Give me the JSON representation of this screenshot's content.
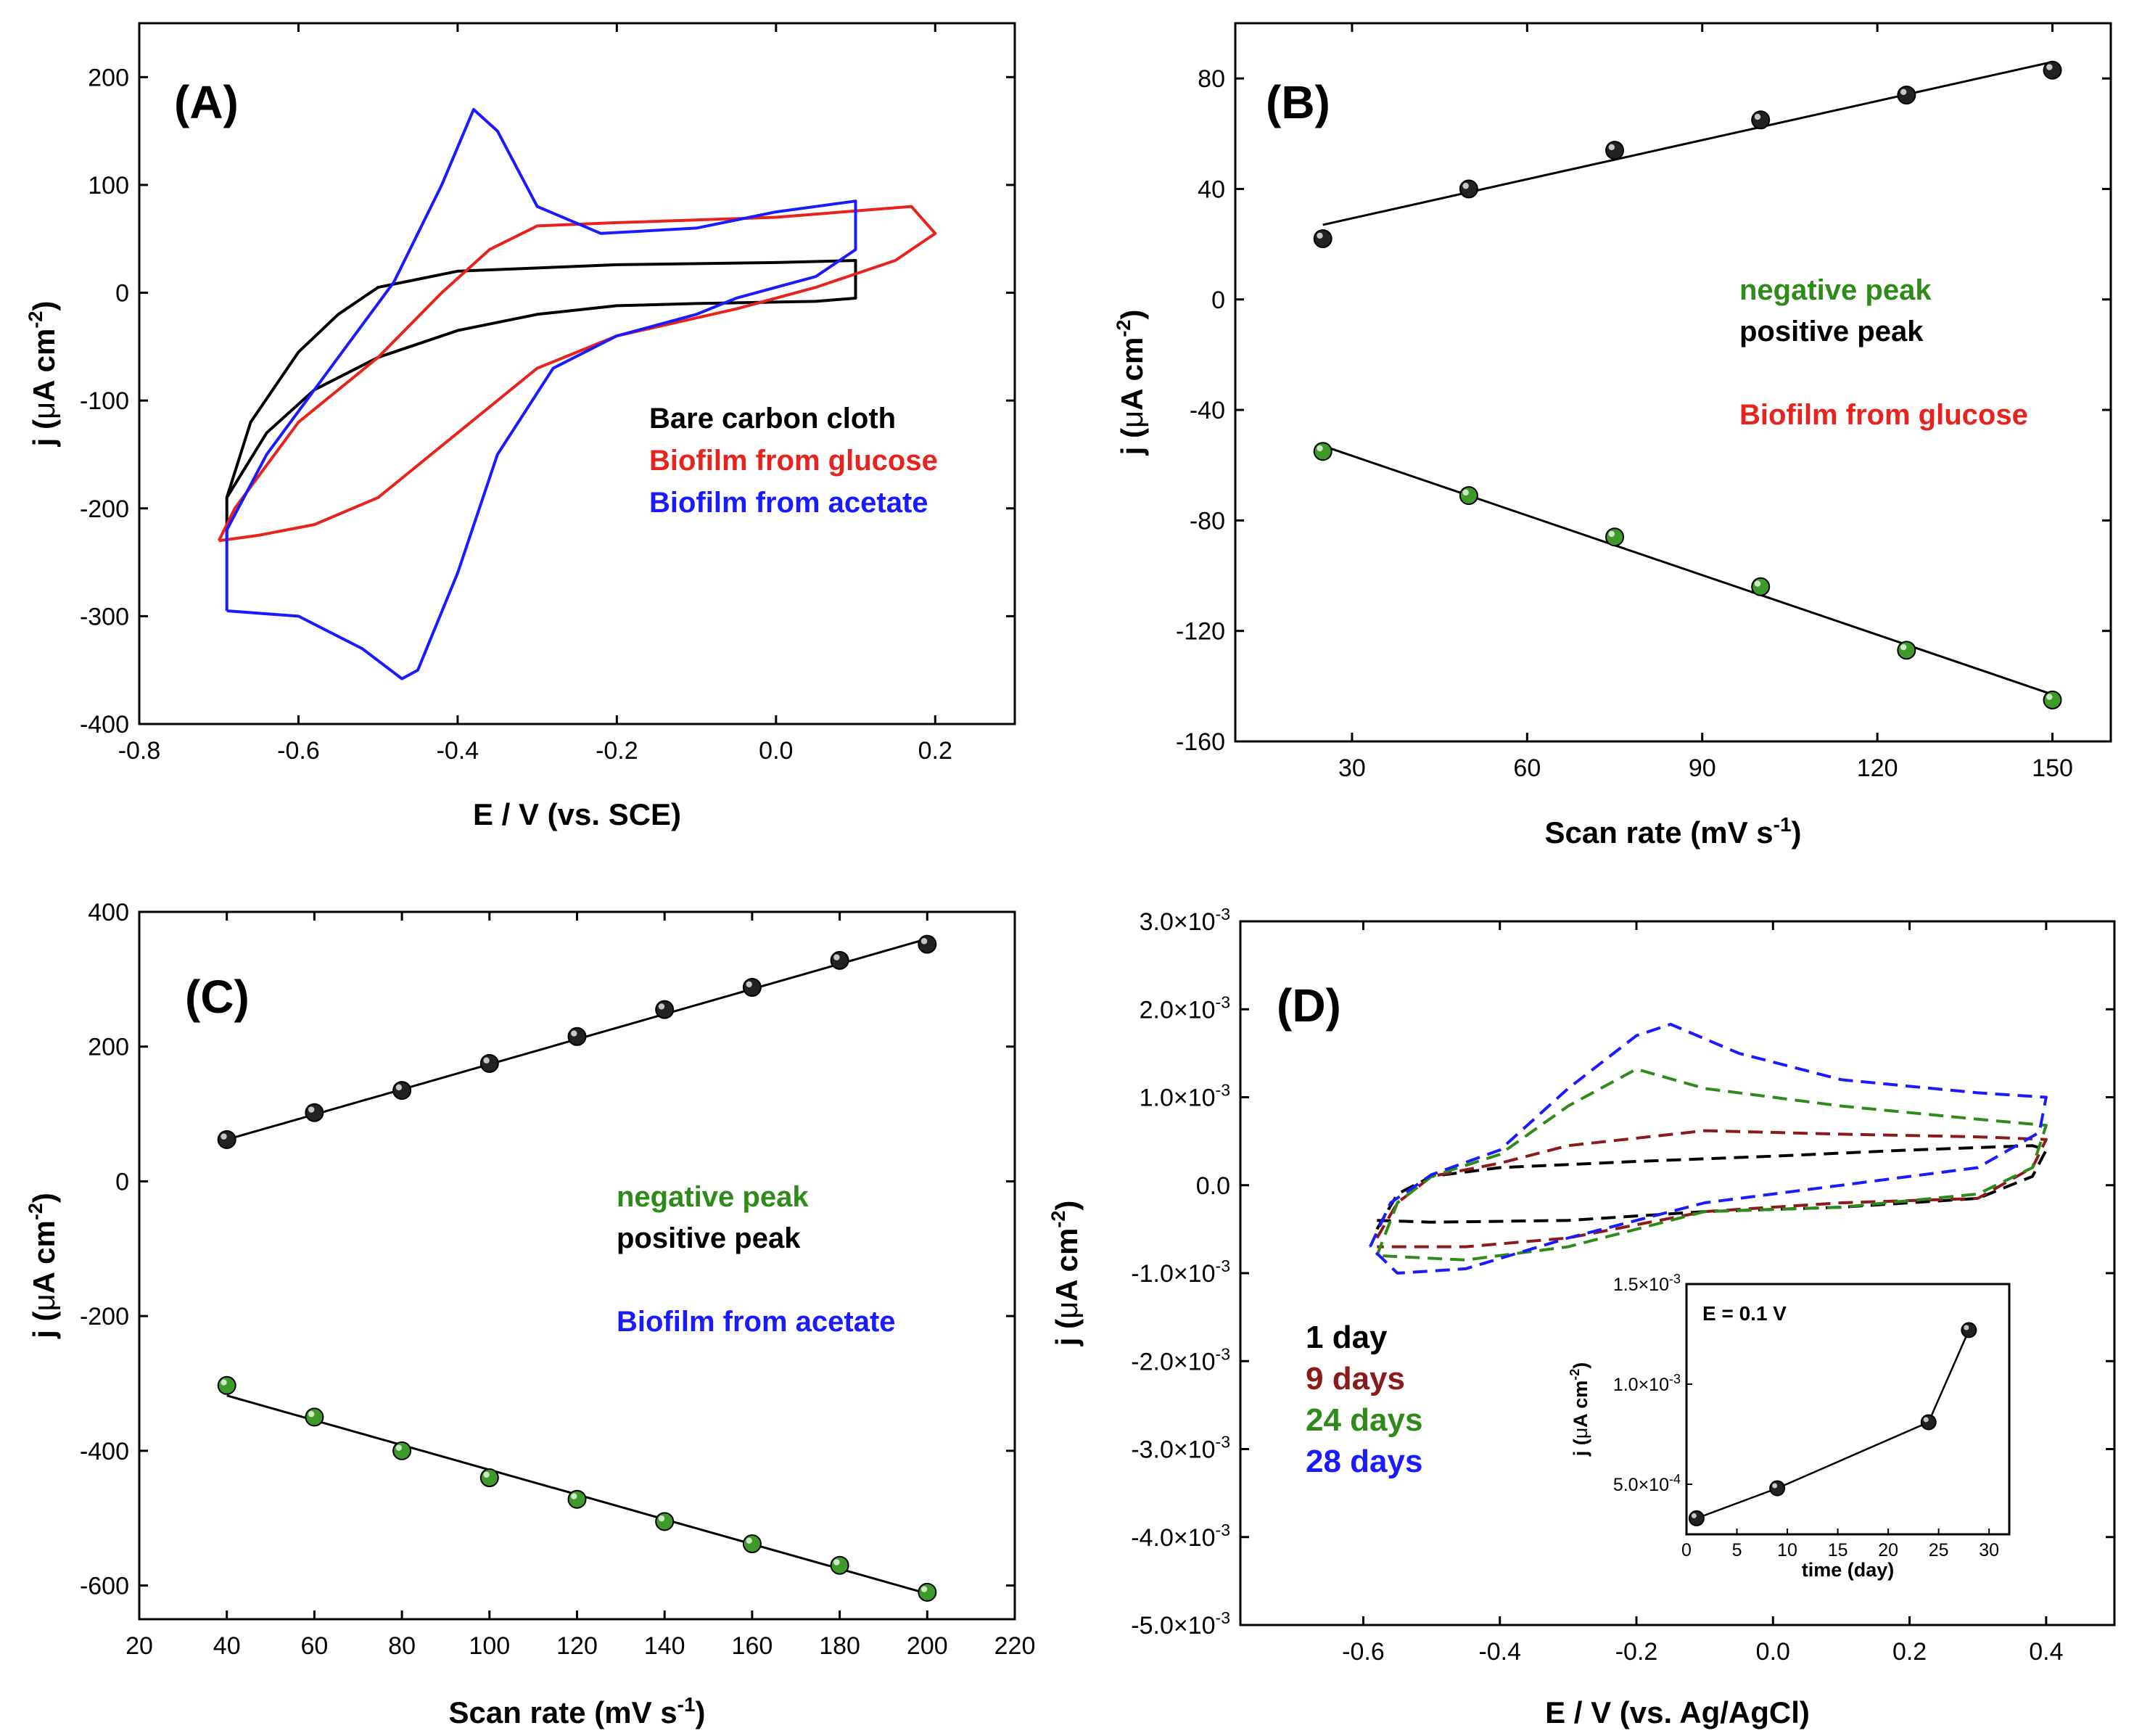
{
  "colors": {
    "black": "#000000",
    "red": "#e8221c",
    "blue": "#1a1aff",
    "green": "#2e8b1a",
    "darkred": "#8b1a1a",
    "dgreen": "#2e8b1a",
    "dblue": "#1a1aff"
  },
  "chart_data": [
    {
      "id": "A",
      "type": "line",
      "panel_label": "(A)",
      "xlabel": "E / V (vs. SCE)",
      "ylabel_main": "j (",
      "ylabel_mu": "μ",
      "ylabel_unit": "A cm",
      "ylabel_sup": "-2",
      "ylabel_close": ")",
      "xlim": [
        -0.8,
        0.3
      ],
      "ylim": [
        -400,
        250
      ],
      "xticks": [
        -0.8,
        -0.6,
        -0.4,
        -0.2,
        0.0,
        0.2
      ],
      "xtick_labels": [
        "-0.8",
        "-0.6",
        "-0.4",
        "-0.2",
        "0.0",
        "0.2"
      ],
      "yticks": [
        -400,
        -300,
        -200,
        -100,
        0,
        100,
        200
      ],
      "ytick_labels": [
        "-400",
        "-300",
        "-200",
        "-100",
        "0",
        "100",
        "200"
      ],
      "legend": [
        "Bare carbon cloth",
        "Biofilm from glucose",
        "Biofilm from acetate"
      ],
      "series": [
        {
          "name": "Bare carbon cloth",
          "color": "black",
          "style": "solid",
          "points": [
            [
              -0.69,
              -230
            ],
            [
              -0.69,
              -190
            ],
            [
              -0.66,
              -120
            ],
            [
              -0.6,
              -55
            ],
            [
              -0.55,
              -20
            ],
            [
              -0.5,
              5
            ],
            [
              -0.4,
              20
            ],
            [
              -0.2,
              26
            ],
            [
              0.0,
              28
            ],
            [
              0.1,
              30
            ],
            [
              0.1,
              -5
            ],
            [
              0.05,
              -8
            ],
            [
              -0.1,
              -10
            ],
            [
              -0.2,
              -12
            ],
            [
              -0.3,
              -20
            ],
            [
              -0.4,
              -35
            ],
            [
              -0.5,
              -60
            ],
            [
              -0.58,
              -90
            ],
            [
              -0.64,
              -130
            ],
            [
              -0.69,
              -190
            ],
            [
              -0.69,
              -230
            ]
          ]
        },
        {
          "name": "Biofilm from glucose",
          "color": "red",
          "style": "solid",
          "points": [
            [
              -0.7,
              -230
            ],
            [
              -0.68,
              -200
            ],
            [
              -0.6,
              -120
            ],
            [
              -0.5,
              -60
            ],
            [
              -0.42,
              0
            ],
            [
              -0.36,
              40
            ],
            [
              -0.3,
              62
            ],
            [
              -0.2,
              65
            ],
            [
              0.0,
              70
            ],
            [
              0.17,
              80
            ],
            [
              0.2,
              55
            ],
            [
              0.15,
              30
            ],
            [
              0.05,
              5
            ],
            [
              -0.05,
              -15
            ],
            [
              -0.2,
              -40
            ],
            [
              -0.3,
              -70
            ],
            [
              -0.4,
              -130
            ],
            [
              -0.5,
              -190
            ],
            [
              -0.58,
              -215
            ],
            [
              -0.65,
              -225
            ],
            [
              -0.7,
              -230
            ]
          ]
        },
        {
          "name": "Biofilm from acetate",
          "color": "blue",
          "style": "solid",
          "points": [
            [
              -0.69,
              -295
            ],
            [
              -0.69,
              -220
            ],
            [
              -0.64,
              -150
            ],
            [
              -0.56,
              -70
            ],
            [
              -0.48,
              10
            ],
            [
              -0.42,
              100
            ],
            [
              -0.38,
              170
            ],
            [
              -0.35,
              150
            ],
            [
              -0.3,
              80
            ],
            [
              -0.22,
              55
            ],
            [
              -0.1,
              60
            ],
            [
              0.0,
              75
            ],
            [
              0.1,
              85
            ],
            [
              0.1,
              40
            ],
            [
              0.05,
              15
            ],
            [
              0.0,
              5
            ],
            [
              -0.05,
              -5
            ],
            [
              -0.1,
              -20
            ],
            [
              -0.2,
              -40
            ],
            [
              -0.28,
              -70
            ],
            [
              -0.35,
              -150
            ],
            [
              -0.4,
              -260
            ],
            [
              -0.45,
              -350
            ],
            [
              -0.47,
              -358
            ],
            [
              -0.52,
              -330
            ],
            [
              -0.6,
              -300
            ],
            [
              -0.69,
              -295
            ]
          ]
        }
      ]
    },
    {
      "id": "B",
      "type": "scatter",
      "panel_label": "(B)",
      "xlabel": "Scan rate (mV s",
      "xlabel_sup": "-1",
      "xlabel_close": ")",
      "ylabel_main": "j (",
      "ylabel_mu": "μ",
      "ylabel_unit": "A cm",
      "ylabel_sup": "-2",
      "ylabel_close": ")",
      "xlim": [
        10,
        160
      ],
      "ylim": [
        -160,
        100
      ],
      "xticks": [
        30,
        60,
        90,
        120,
        150
      ],
      "xtick_labels": [
        "30",
        "60",
        "90",
        "120",
        "150"
      ],
      "yticks": [
        -160,
        -120,
        -80,
        -40,
        0,
        40,
        80
      ],
      "ytick_labels": [
        "-160",
        "-120",
        "-80",
        "-40",
        "0",
        "40",
        "80"
      ],
      "legend": [
        "negative peak",
        "positive peak",
        "Biofilm from glucose"
      ],
      "series": [
        {
          "name": "positive peak",
          "color": "black",
          "x": [
            25,
            50,
            75,
            100,
            125,
            150
          ],
          "y": [
            22,
            40,
            54,
            65,
            74,
            83
          ],
          "fit": [
            [
              25,
              27
            ],
            [
              150,
              86
            ]
          ]
        },
        {
          "name": "negative peak",
          "color": "green",
          "x": [
            25,
            50,
            75,
            100,
            125,
            150
          ],
          "y": [
            -55,
            -71,
            -86,
            -104,
            -127,
            -145
          ],
          "fit": [
            [
              25,
              -53
            ],
            [
              150,
              -143
            ]
          ]
        }
      ]
    },
    {
      "id": "C",
      "type": "scatter",
      "panel_label": "(C)",
      "xlabel": "Scan rate (mV s",
      "xlabel_sup": "-1",
      "xlabel_close": ")",
      "ylabel_main": "j (",
      "ylabel_mu": "μ",
      "ylabel_unit": "A cm",
      "ylabel_sup": "-2",
      "ylabel_close": ")",
      "xlim": [
        20,
        220
      ],
      "ylim": [
        -650,
        400
      ],
      "xticks": [
        20,
        40,
        60,
        80,
        100,
        120,
        140,
        160,
        180,
        200,
        220
      ],
      "xtick_labels": [
        "20",
        "40",
        "60",
        "80",
        "100",
        "120",
        "140",
        "160",
        "180",
        "200",
        "220"
      ],
      "yticks": [
        -600,
        -400,
        -200,
        0,
        200,
        400
      ],
      "ytick_labels": [
        "-600",
        "-400",
        "-200",
        "0",
        "200",
        "400"
      ],
      "legend": [
        "negative peak",
        "positive peak",
        "Biofilm from acetate"
      ],
      "series": [
        {
          "name": "positive peak",
          "color": "black",
          "x": [
            40,
            60,
            80,
            100,
            120,
            140,
            160,
            180,
            200
          ],
          "y": [
            62,
            102,
            135,
            175,
            215,
            255,
            288,
            328,
            352
          ],
          "fit": [
            [
              40,
              62
            ],
            [
              200,
              360
            ]
          ]
        },
        {
          "name": "negative peak",
          "color": "green",
          "x": [
            40,
            60,
            80,
            100,
            120,
            140,
            160,
            180,
            200
          ],
          "y": [
            -303,
            -350,
            -400,
            -440,
            -472,
            -505,
            -538,
            -570,
            -610
          ],
          "fit": [
            [
              40,
              -318
            ],
            [
              200,
              -612
            ]
          ]
        }
      ]
    },
    {
      "id": "D",
      "type": "line",
      "panel_label": "(D)",
      "xlabel": "E / V (vs. Ag/AgCl)",
      "ylabel_main": "j (",
      "ylabel_mu": "μ",
      "ylabel_unit": "A cm",
      "ylabel_sup": "-2",
      "ylabel_close": ")",
      "xlim": [
        -0.78,
        0.5
      ],
      "ylim": [
        -0.005,
        0.003
      ],
      "xticks": [
        -0.6,
        -0.4,
        -0.2,
        0.0,
        0.2,
        0.4
      ],
      "xtick_labels": [
        "-0.6",
        "-0.4",
        "-0.2",
        "0.0",
        "0.2",
        "0.4"
      ],
      "yticks": [
        -0.005,
        -0.004,
        -0.003,
        -0.002,
        -0.001,
        0.0,
        0.001,
        0.002,
        0.003
      ],
      "ytick_mant": [
        "-5.0×10",
        "-4.0×10",
        "-3.0×10",
        "-2.0×10",
        "-1.0×10",
        "0.0",
        "1.0×10",
        "2.0×10",
        "3.0×10"
      ],
      "ytick_exp": [
        "-3",
        "-3",
        "-3",
        "-3",
        "-3",
        "",
        "-3",
        "-3",
        "-3"
      ],
      "legend": [
        "1 day",
        "9 days",
        "24 days",
        "28 days"
      ],
      "series": [
        {
          "name": "1 day",
          "color": "black",
          "style": "dashed",
          "points": [
            [
              -0.58,
              -0.0005
            ],
            [
              -0.55,
              -0.0001
            ],
            [
              -0.5,
              0.0001
            ],
            [
              -0.4,
              0.0002
            ],
            [
              -0.2,
              0.00027
            ],
            [
              0.0,
              0.00033
            ],
            [
              0.2,
              0.0004
            ],
            [
              0.38,
              0.00045
            ],
            [
              0.4,
              0.0004
            ],
            [
              0.38,
              0.0001
            ],
            [
              0.3,
              -0.00015
            ],
            [
              0.1,
              -0.00025
            ],
            [
              -0.1,
              -0.0003
            ],
            [
              -0.3,
              -0.0004
            ],
            [
              -0.5,
              -0.00042
            ],
            [
              -0.58,
              -0.0004
            ]
          ]
        },
        {
          "name": "9 days",
          "color": "darkred",
          "style": "dashed",
          "points": [
            [
              -0.58,
              -0.0006
            ],
            [
              -0.55,
              -0.0002
            ],
            [
              -0.5,
              0.0001
            ],
            [
              -0.4,
              0.00025
            ],
            [
              -0.3,
              0.00045
            ],
            [
              -0.1,
              0.00062
            ],
            [
              0.1,
              0.00058
            ],
            [
              0.3,
              0.00055
            ],
            [
              0.4,
              0.00052
            ],
            [
              0.38,
              0.0002
            ],
            [
              0.3,
              -0.00015
            ],
            [
              0.1,
              -0.0002
            ],
            [
              -0.1,
              -0.0003
            ],
            [
              -0.3,
              -0.0006
            ],
            [
              -0.45,
              -0.0007
            ],
            [
              -0.58,
              -0.0007
            ]
          ]
        },
        {
          "name": "24 days",
          "color": "dgreen",
          "style": "dashed",
          "points": [
            [
              -0.58,
              -0.0008
            ],
            [
              -0.55,
              -0.0002
            ],
            [
              -0.5,
              0.0001
            ],
            [
              -0.4,
              0.00035
            ],
            [
              -0.3,
              0.0009
            ],
            [
              -0.2,
              0.00132
            ],
            [
              -0.1,
              0.0011
            ],
            [
              0.1,
              0.0009
            ],
            [
              0.3,
              0.00075
            ],
            [
              0.4,
              0.00068
            ],
            [
              0.38,
              0.0002
            ],
            [
              0.3,
              -0.0001
            ],
            [
              0.1,
              -0.00025
            ],
            [
              -0.1,
              -0.0003
            ],
            [
              -0.3,
              -0.0007
            ],
            [
              -0.45,
              -0.00085
            ],
            [
              -0.58,
              -0.0008
            ]
          ]
        },
        {
          "name": "28 days",
          "color": "dblue",
          "style": "dashed",
          "points": [
            [
              -0.59,
              -0.0007
            ],
            [
              -0.56,
              -0.0002
            ],
            [
              -0.5,
              0.00012
            ],
            [
              -0.4,
              0.0004
            ],
            [
              -0.3,
              0.0011
            ],
            [
              -0.2,
              0.0017
            ],
            [
              -0.15,
              0.00183
            ],
            [
              -0.05,
              0.0015
            ],
            [
              0.1,
              0.0012
            ],
            [
              0.3,
              0.00105
            ],
            [
              0.4,
              0.001
            ],
            [
              0.39,
              0.0006
            ],
            [
              0.3,
              0.0002
            ],
            [
              0.1,
              0.0
            ],
            [
              -0.1,
              -0.0002
            ],
            [
              -0.3,
              -0.0006
            ],
            [
              -0.45,
              -0.00095
            ],
            [
              -0.55,
              -0.001
            ],
            [
              -0.59,
              -0.0007
            ]
          ]
        }
      ],
      "inset": {
        "annotation": "E = 0.1 V",
        "xlabel": "time (day)",
        "ylabel_main": "j (",
        "ylabel_mu": "μ",
        "ylabel_unit": "A cm",
        "ylabel_sup": "-2",
        "ylabel_close": ")",
        "xlim": [
          0,
          32
        ],
        "ylim": [
          0.00025,
          0.0015
        ],
        "xticks": [
          0,
          5,
          10,
          15,
          20,
          25,
          30
        ],
        "xtick_labels": [
          "0",
          "5",
          "10",
          "15",
          "20",
          "25",
          "30"
        ],
        "yticks": [
          0.0005,
          0.001,
          0.0015
        ],
        "ytick_mant": [
          "5.0×10",
          "1.0×10",
          "1.5×10"
        ],
        "ytick_exp": [
          "-4",
          "-3",
          "-3"
        ],
        "x": [
          1,
          9,
          24,
          28
        ],
        "y": [
          0.00033,
          0.00048,
          0.00081,
          0.00127
        ]
      }
    }
  ]
}
